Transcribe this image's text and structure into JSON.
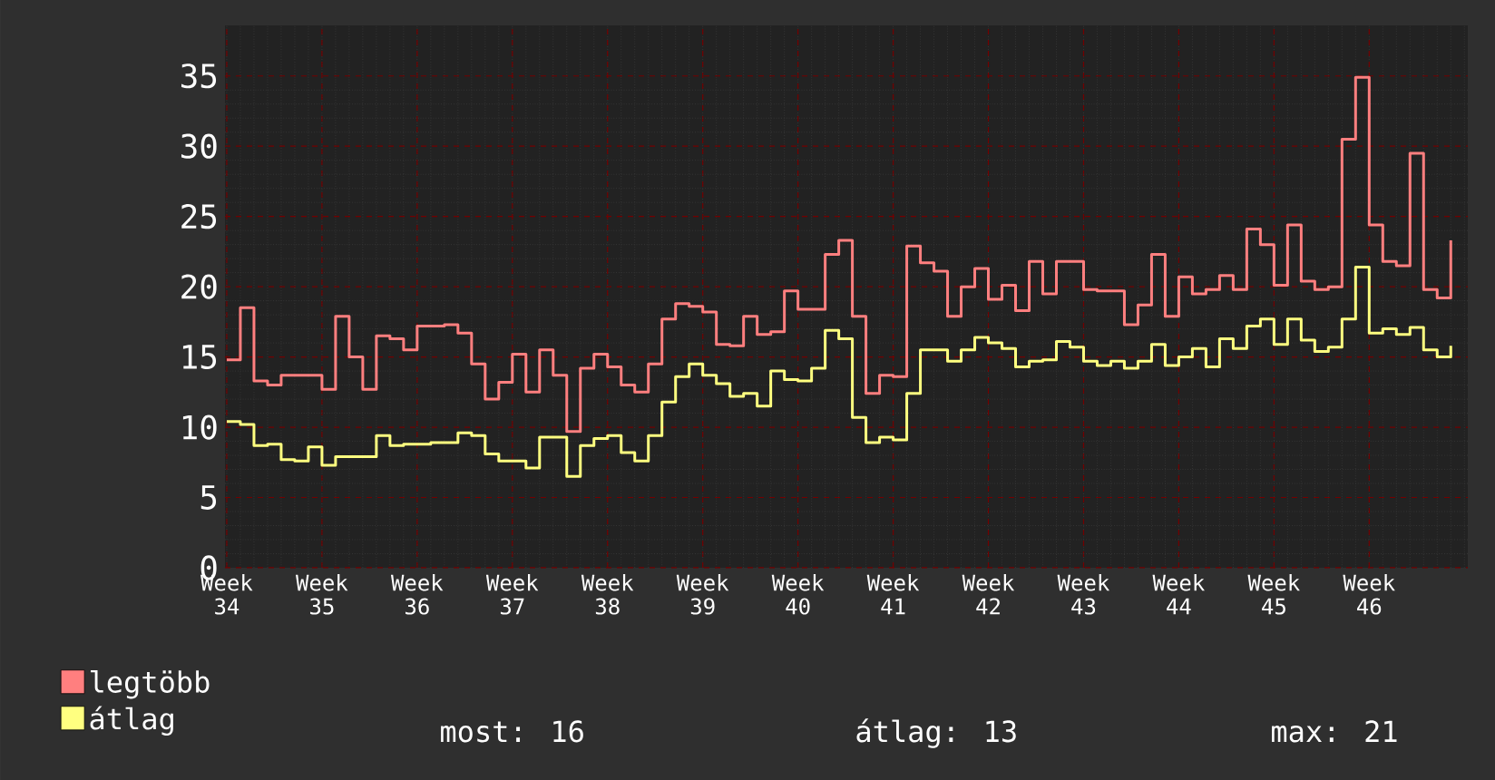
{
  "chart_data": {
    "type": "step",
    "categories": [
      "Week 34",
      null,
      null,
      null,
      null,
      null,
      null,
      "Week 35",
      null,
      null,
      null,
      null,
      null,
      null,
      "Week 36",
      null,
      null,
      null,
      null,
      null,
      null,
      "Week 37",
      null,
      null,
      null,
      null,
      null,
      null,
      "Week 38",
      null,
      null,
      null,
      null,
      null,
      null,
      "Week 39",
      null,
      null,
      null,
      null,
      null,
      null,
      "Week 40",
      null,
      null,
      null,
      null,
      null,
      null,
      "Week 41",
      null,
      null,
      null,
      null,
      null,
      null,
      "Week 42",
      null,
      null,
      null,
      null,
      null,
      null,
      "Week 43",
      null,
      null,
      null,
      null,
      null,
      null,
      "Week 44",
      null,
      null,
      null,
      null,
      null,
      null,
      "Week 45",
      null,
      null,
      null,
      null,
      null,
      null,
      "Week 46",
      null,
      null,
      null,
      null,
      null,
      null
    ],
    "ylim": [
      0,
      38.6
    ],
    "yticks": [
      0,
      5,
      10,
      15,
      20,
      25,
      30,
      35
    ],
    "grid": true,
    "legend": "bottom left",
    "marker": "none",
    "line_style": "solid",
    "series": [
      {
        "name": "legtöbb",
        "color": "#ff7f7f",
        "values": [
          14.8,
          18.5,
          13.3,
          13.0,
          13.7,
          13.7,
          13.7,
          12.7,
          17.9,
          15.0,
          12.7,
          16.5,
          16.3,
          15.5,
          17.2,
          17.2,
          17.3,
          16.7,
          14.5,
          12.0,
          13.2,
          15.2,
          12.5,
          15.5,
          13.7,
          9.7,
          14.2,
          15.2,
          14.3,
          13.0,
          12.5,
          14.5,
          17.7,
          18.8,
          18.6,
          18.2,
          15.9,
          15.8,
          17.9,
          16.6,
          16.8,
          19.7,
          18.4,
          18.4,
          22.3,
          23.3,
          17.9,
          12.4,
          13.7,
          13.6,
          22.9,
          21.7,
          21.1,
          17.9,
          20.0,
          21.3,
          19.1,
          20.1,
          18.3,
          21.8,
          19.5,
          21.8,
          21.8,
          19.8,
          19.7,
          19.7,
          17.3,
          18.7,
          22.3,
          17.9,
          20.7,
          19.5,
          19.8,
          20.8,
          19.8,
          24.1,
          23.0,
          20.1,
          24.4,
          20.4,
          19.8,
          20.0,
          30.5,
          34.9,
          24.4,
          21.8,
          21.5,
          29.5,
          19.8,
          19.2,
          23.3
        ]
      },
      {
        "name": "átlag",
        "color": "#ffff80",
        "values": [
          10.4,
          10.2,
          8.7,
          8.8,
          7.7,
          7.6,
          8.6,
          7.3,
          7.9,
          7.9,
          7.9,
          9.4,
          8.7,
          8.8,
          8.8,
          8.9,
          8.9,
          9.6,
          9.4,
          8.1,
          7.6,
          7.6,
          7.1,
          9.3,
          9.3,
          6.5,
          8.7,
          9.2,
          9.4,
          8.2,
          7.6,
          9.4,
          11.8,
          13.6,
          14.5,
          13.7,
          13.1,
          12.2,
          12.4,
          11.5,
          14.0,
          13.4,
          13.3,
          14.2,
          16.9,
          16.3,
          10.7,
          8.9,
          9.3,
          9.1,
          12.4,
          15.5,
          15.5,
          14.7,
          15.5,
          16.4,
          16.0,
          15.6,
          14.3,
          14.7,
          14.8,
          16.1,
          15.7,
          14.7,
          14.4,
          14.7,
          14.2,
          14.7,
          15.9,
          14.4,
          15.0,
          15.6,
          14.3,
          16.3,
          15.6,
          17.2,
          17.7,
          15.9,
          17.7,
          16.2,
          15.4,
          15.7,
          17.7,
          21.4,
          16.7,
          17.0,
          16.6,
          17.1,
          15.5,
          15.0,
          15.8
        ]
      }
    ],
    "annotations": [
      "most: 16",
      "átlag: 13",
      "max: 21"
    ]
  }
}
